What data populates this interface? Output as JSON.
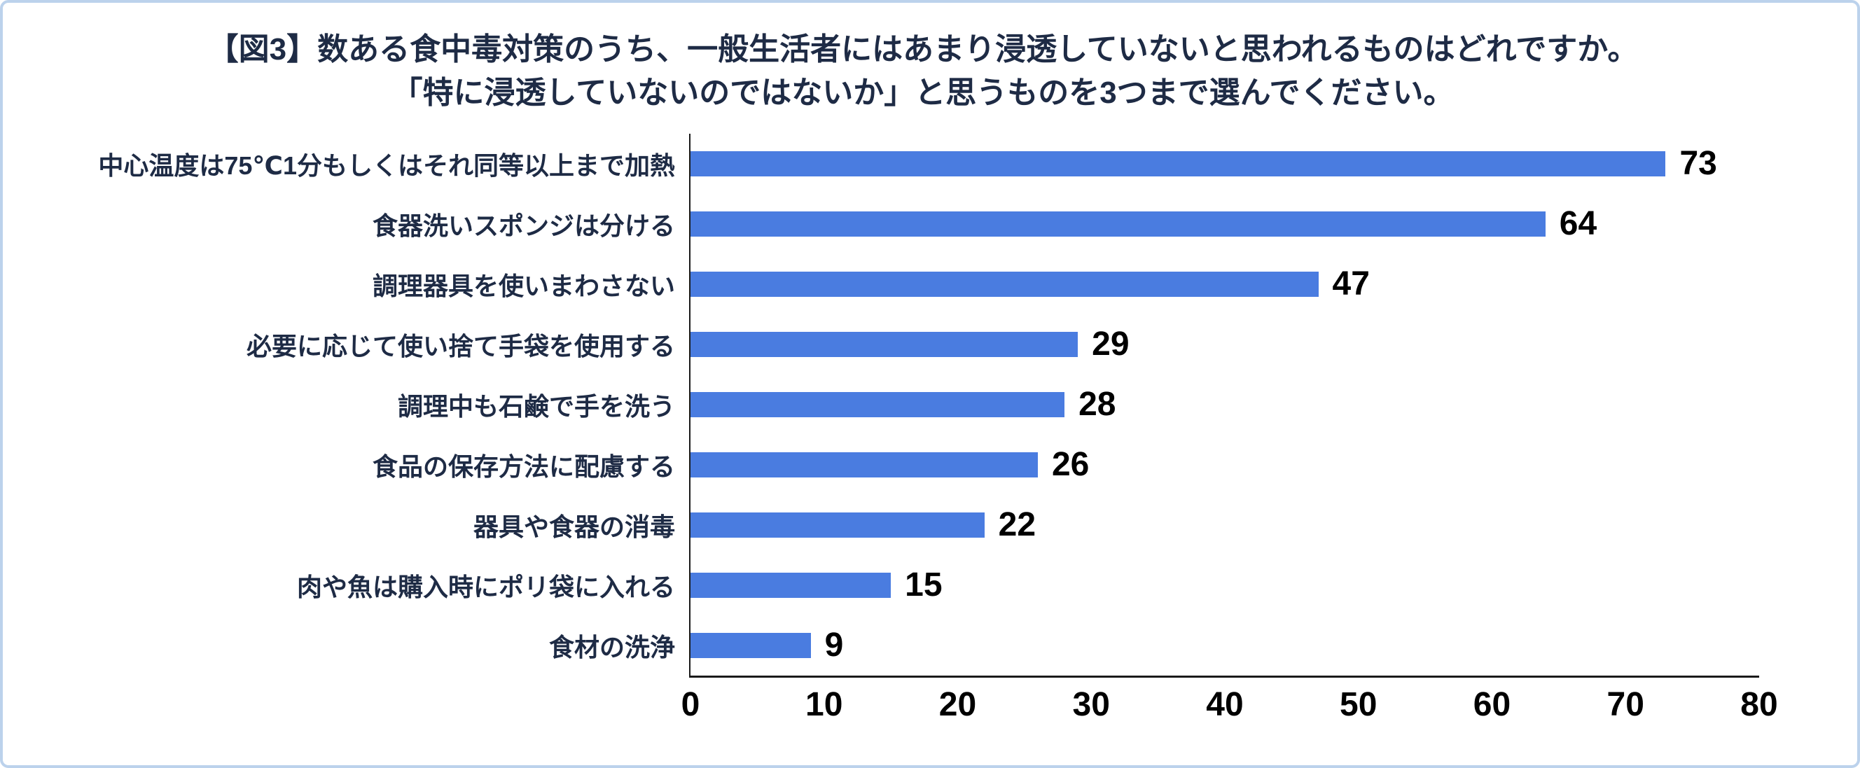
{
  "title": {
    "line1": "【図3】数ある食中毒対策のうち、一般生活者にはあまり浸透していないと思われるものはどれですか。",
    "line2": "「特に浸透していないのではないか」と思うものを3つまで選んでください。"
  },
  "colors": {
    "bar": "#4a7ce0",
    "title_text": "#1e2b45",
    "axis_line": "#1a1a1a",
    "frame_border": "#bcd2ec"
  },
  "chart_data": {
    "type": "bar",
    "orientation": "horizontal",
    "title": "【図3】数ある食中毒対策のうち、一般生活者にはあまり浸透していないと思われるものはどれですか。「特に浸透していないのではないか」と思うものを3つまで選んでください。",
    "categories": [
      "中心温度は75℃1分もしくはそれ同等以上まで加熱",
      "食器洗いスポンジは分ける",
      "調理器具を使いまわさない",
      "必要に応じて使い捨て手袋を使用する",
      "調理中も石鹸で手を洗う",
      "食品の保存方法に配慮する",
      "器具や食器の消毒",
      "肉や魚は購入時にポリ袋に入れる",
      "食材の洗浄"
    ],
    "values": [
      73,
      64,
      47,
      29,
      28,
      26,
      22,
      15,
      9
    ],
    "xlim": [
      0,
      80
    ],
    "xticks": [
      0,
      10,
      20,
      30,
      40,
      50,
      60,
      70,
      80
    ],
    "grid": false,
    "legend": false,
    "value_labels": true
  }
}
